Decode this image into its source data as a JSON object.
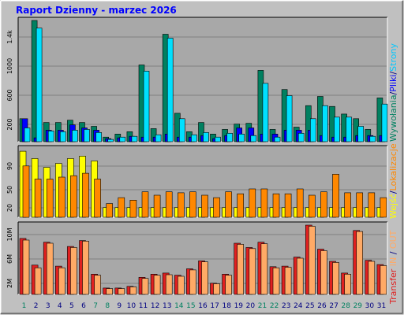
{
  "title": "Raport Dzienny -  marzec 2026",
  "colors": {
    "background": "#c0c0c0",
    "plot": "#a8a8a8",
    "visits": "#008060",
    "pages": "#00e0ff",
    "files": "#0000ff",
    "hits": "#00c8ff",
    "sites": "#ffff00",
    "kbytes": "#ff8800",
    "kin": "#e02020",
    "kout": "#ffaa66",
    "weekend_label": "#008060",
    "weekday_label": "#000080"
  },
  "legends": {
    "top": [
      {
        "text": "Wywołania",
        "color": "#008060"
      },
      {
        "text": "/",
        "color": "#000080"
      },
      {
        "text": "Pliki",
        "color": "#0000ff"
      },
      {
        "text": "/",
        "color": "#000080"
      },
      {
        "text": "Strony",
        "color": "#00c8ff"
      }
    ],
    "middle": [
      {
        "text": "Wejść",
        "color": "#ffff00"
      },
      {
        "text": "/",
        "color": "#000080"
      },
      {
        "text": "Lokalizacje",
        "color": "#ff8800"
      }
    ],
    "bottom": [
      {
        "text": "Transfer",
        "color": "#e02020"
      },
      {
        "text": " ",
        "color": "#000080"
      },
      {
        "text": "IN",
        "color": "#ffaa66"
      },
      {
        "text": " / ",
        "color": "#000080"
      },
      {
        "text": "OUT",
        "color": "#ffaa66"
      }
    ]
  },
  "chart_data": [
    {
      "type": "bar",
      "panel": "hits-files-pages",
      "categories": [
        "1",
        "2",
        "3",
        "4",
        "5",
        "6",
        "7",
        "8",
        "9",
        "10",
        "11",
        "12",
        "13",
        "14",
        "15",
        "16",
        "17",
        "18",
        "19",
        "20",
        "21",
        "22",
        "23",
        "24",
        "25",
        "26",
        "27",
        "28",
        "29",
        "30",
        "31"
      ],
      "weekend_days": [
        "1",
        "7",
        "8",
        "14",
        "15",
        "21",
        "22",
        "28",
        "29"
      ],
      "ytick_labels": [
        "200",
        "600",
        "1000",
        "1.4k"
      ],
      "ylim": [
        0,
        1580
      ],
      "series": [
        {
          "name": "Wywołania",
          "values": [
            300,
            1580,
            250,
            250,
            280,
            250,
            200,
            60,
            100,
            130,
            1000,
            170,
            1400,
            370,
            130,
            250,
            100,
            160,
            230,
            240,
            930,
            160,
            680,
            190,
            470,
            590,
            460,
            360,
            300,
            160,
            570
          ]
        },
        {
          "name": "Pliki",
          "values": [
            300,
            50,
            150,
            150,
            220,
            180,
            150,
            40,
            50,
            70,
            60,
            60,
            100,
            60,
            60,
            80,
            40,
            80,
            180,
            180,
            100,
            100,
            150,
            150,
            150,
            80,
            60,
            60,
            80,
            80,
            80
          ]
        },
        {
          "name": "Strony",
          "values": [
            180,
            1480,
            140,
            130,
            150,
            160,
            120,
            30,
            60,
            70,
            920,
            90,
            1350,
            300,
            90,
            120,
            60,
            110,
            100,
            80,
            760,
            60,
            600,
            110,
            300,
            470,
            320,
            320,
            200,
            70,
            490
          ]
        }
      ]
    },
    {
      "type": "bar",
      "panel": "visits-sites",
      "categories": [
        "1",
        "2",
        "3",
        "4",
        "5",
        "6",
        "7",
        "8",
        "9",
        "10",
        "11",
        "12",
        "13",
        "14",
        "15",
        "16",
        "17",
        "18",
        "19",
        "20",
        "21",
        "22",
        "23",
        "24",
        "25",
        "26",
        "27",
        "28",
        "29",
        "30",
        "31"
      ],
      "ytick_labels": [
        "20",
        "50",
        "90"
      ],
      "ylim": [
        0,
        140
      ],
      "series": [
        {
          "name": "Wejść",
          "values": [
            135,
            120,
            102,
            110,
            120,
            125,
            115,
            20,
            20,
            20,
            20,
            20,
            20,
            20,
            20,
            20,
            20,
            20,
            20,
            20,
            20,
            20,
            20,
            20,
            20,
            20,
            20,
            20,
            20,
            20,
            20
          ]
        },
        {
          "name": "Lokalizacje",
          "values": [
            105,
            78,
            78,
            82,
            85,
            90,
            78,
            28,
            40,
            35,
            52,
            45,
            52,
            50,
            52,
            45,
            40,
            52,
            48,
            58,
            58,
            48,
            48,
            58,
            45,
            52,
            88,
            50,
            50,
            50,
            40
          ]
        }
      ]
    },
    {
      "type": "bar",
      "panel": "kbytes",
      "categories": [
        "1",
        "2",
        "3",
        "4",
        "5",
        "6",
        "7",
        "8",
        "9",
        "10",
        "11",
        "12",
        "13",
        "14",
        "15",
        "16",
        "17",
        "18",
        "19",
        "20",
        "21",
        "22",
        "23",
        "24",
        "25",
        "26",
        "27",
        "28",
        "29",
        "30",
        "31"
      ],
      "ytick_labels": [
        "2M",
        "6M",
        "10M"
      ],
      "ylim": [
        0,
        13
      ],
      "series": [
        {
          "name": "Transfer",
          "values": [
            10.5,
            5.5,
            9.8,
            5.3,
            9.0,
            10.1,
            3.8,
            1.2,
            1.2,
            1.5,
            3.2,
            3.8,
            4.0,
            3.6,
            4.8,
            6.3,
            2.1,
            3.8,
            9.6,
            8.8,
            9.8,
            5.2,
            5.3,
            7.0,
            13.0,
            8.5,
            6.2,
            4.0,
            12.0,
            6.4,
            5.6
          ]
        },
        {
          "name": "IN/OUT",
          "values": [
            10.2,
            5.0,
            9.6,
            5.0,
            8.8,
            10.0,
            3.6,
            1.1,
            1.1,
            1.4,
            3.0,
            3.6,
            3.7,
            3.4,
            4.6,
            6.1,
            2.0,
            3.6,
            9.4,
            8.6,
            9.5,
            5.0,
            5.1,
            6.8,
            12.8,
            8.2,
            6.0,
            3.8,
            11.8,
            6.2,
            5.4
          ]
        }
      ]
    }
  ]
}
